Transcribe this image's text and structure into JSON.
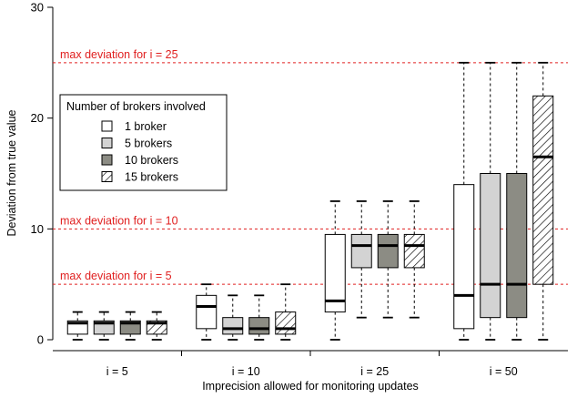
{
  "chart_data": {
    "type": "boxplot",
    "xlabel": "Imprecision allowed for monitoring updates",
    "ylabel": "Deviation from true value",
    "ylim": [
      0,
      30
    ],
    "yticks": [
      0,
      10,
      20,
      30
    ],
    "categories": [
      "i = 5",
      "i = 10",
      "i = 25",
      "i = 50"
    ],
    "legend": {
      "title": "Number of brokers involved",
      "placement": "top-left"
    },
    "series": [
      {
        "name": "1 broker",
        "fill": "#ffffff",
        "pattern": "none",
        "boxes": [
          {
            "whisker_low": 0,
            "q1": 0.5,
            "median": 1.5,
            "q3": 1.7,
            "whisker_high": 2.5
          },
          {
            "whisker_low": 0,
            "q1": 1.0,
            "median": 3.0,
            "q3": 4.0,
            "whisker_high": 5.0
          },
          {
            "whisker_low": 0,
            "q1": 2.5,
            "median": 3.5,
            "q3": 9.5,
            "whisker_high": 12.5
          },
          {
            "whisker_low": 0,
            "q1": 1.0,
            "median": 4.0,
            "q3": 14.0,
            "whisker_high": 25.0
          }
        ]
      },
      {
        "name": "5 brokers",
        "fill": "#d3d3d3",
        "pattern": "none",
        "boxes": [
          {
            "whisker_low": 0,
            "q1": 0.5,
            "median": 1.5,
            "q3": 1.7,
            "whisker_high": 2.5
          },
          {
            "whisker_low": 0,
            "q1": 0.5,
            "median": 1.0,
            "q3": 2.0,
            "whisker_high": 4.0
          },
          {
            "whisker_low": 2,
            "q1": 6.5,
            "median": 8.5,
            "q3": 9.5,
            "whisker_high": 12.5
          },
          {
            "whisker_low": 0,
            "q1": 2.0,
            "median": 5.0,
            "q3": 15.0,
            "whisker_high": 25.0
          }
        ]
      },
      {
        "name": "10 brokers",
        "fill": "#8c8c84",
        "pattern": "none",
        "boxes": [
          {
            "whisker_low": 0,
            "q1": 0.5,
            "median": 1.5,
            "q3": 1.7,
            "whisker_high": 2.5
          },
          {
            "whisker_low": 0,
            "q1": 0.5,
            "median": 1.0,
            "q3": 2.0,
            "whisker_high": 4.0
          },
          {
            "whisker_low": 2,
            "q1": 6.5,
            "median": 8.5,
            "q3": 9.5,
            "whisker_high": 12.5
          },
          {
            "whisker_low": 0,
            "q1": 2.0,
            "median": 5.0,
            "q3": 15.0,
            "whisker_high": 25.0
          }
        ]
      },
      {
        "name": "15 brokers",
        "fill": "#ffffff",
        "pattern": "hatch",
        "boxes": [
          {
            "whisker_low": 0,
            "q1": 0.5,
            "median": 1.5,
            "q3": 1.7,
            "whisker_high": 2.5
          },
          {
            "whisker_low": 0,
            "q1": 0.5,
            "median": 1.0,
            "q3": 2.5,
            "whisker_high": 5.0
          },
          {
            "whisker_low": 2,
            "q1": 6.5,
            "median": 8.5,
            "q3": 9.5,
            "whisker_high": 12.5
          },
          {
            "whisker_low": 0,
            "q1": 5.0,
            "median": 16.5,
            "q3": 22.0,
            "whisker_high": 25.0
          }
        ]
      }
    ],
    "reference_lines": [
      {
        "y": 25,
        "label": "max deviation for i = 25",
        "color": "#e02020"
      },
      {
        "y": 10,
        "label": "max deviation for i = 10",
        "color": "#e02020"
      },
      {
        "y": 5,
        "label": "max deviation for i = 5",
        "color": "#e02020"
      }
    ]
  }
}
